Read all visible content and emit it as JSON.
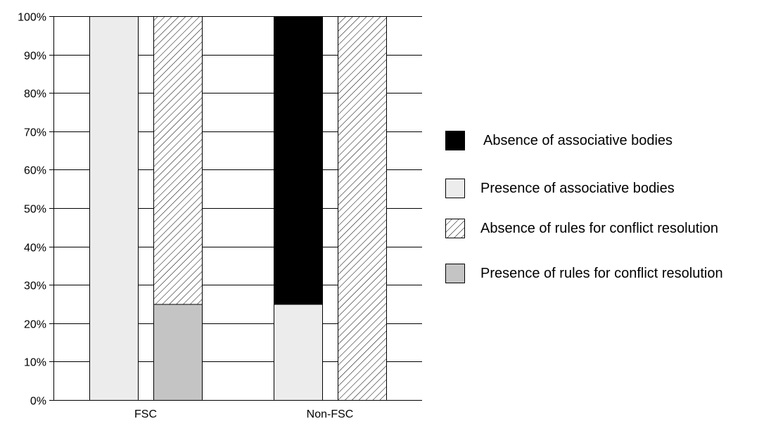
{
  "chart_data": {
    "type": "bar",
    "stacked": true,
    "categories": [
      "FSC",
      "Non-FSC"
    ],
    "ylim": [
      0,
      100
    ],
    "yticks": [
      "0%",
      "10%",
      "20%",
      "30%",
      "40%",
      "50%",
      "60%",
      "70%",
      "80%",
      "90%",
      "100%"
    ],
    "grid": true,
    "legend_position": "right",
    "stacks": [
      {
        "name": "associative bodies",
        "series": [
          {
            "name": "Presence of associative bodies",
            "values": [
              100,
              25
            ],
            "color": "#ececec",
            "pattern": "solid"
          },
          {
            "name": "Absence of associative bodies",
            "values": [
              0,
              75
            ],
            "color": "#000000",
            "pattern": "solid"
          }
        ]
      },
      {
        "name": "rules for conflict resolution",
        "series": [
          {
            "name": "Presence of rules for conflict resolution",
            "values": [
              25,
              0
            ],
            "color": "#c4c4c4",
            "pattern": "solid"
          },
          {
            "name": "Absence of rules for conflict resolution",
            "values": [
              75,
              100
            ],
            "color": "#ffffff",
            "pattern": "hatch"
          }
        ]
      }
    ],
    "legend": [
      {
        "label": "Absence of associative bodies",
        "swatch": "black"
      },
      {
        "label": "Presence of associative bodies",
        "swatch": "light-gray"
      },
      {
        "label": "Absence of rules for conflict resolution",
        "swatch": "hatch"
      },
      {
        "label": "Presence of rules for conflict resolution",
        "swatch": "gray"
      }
    ]
  }
}
